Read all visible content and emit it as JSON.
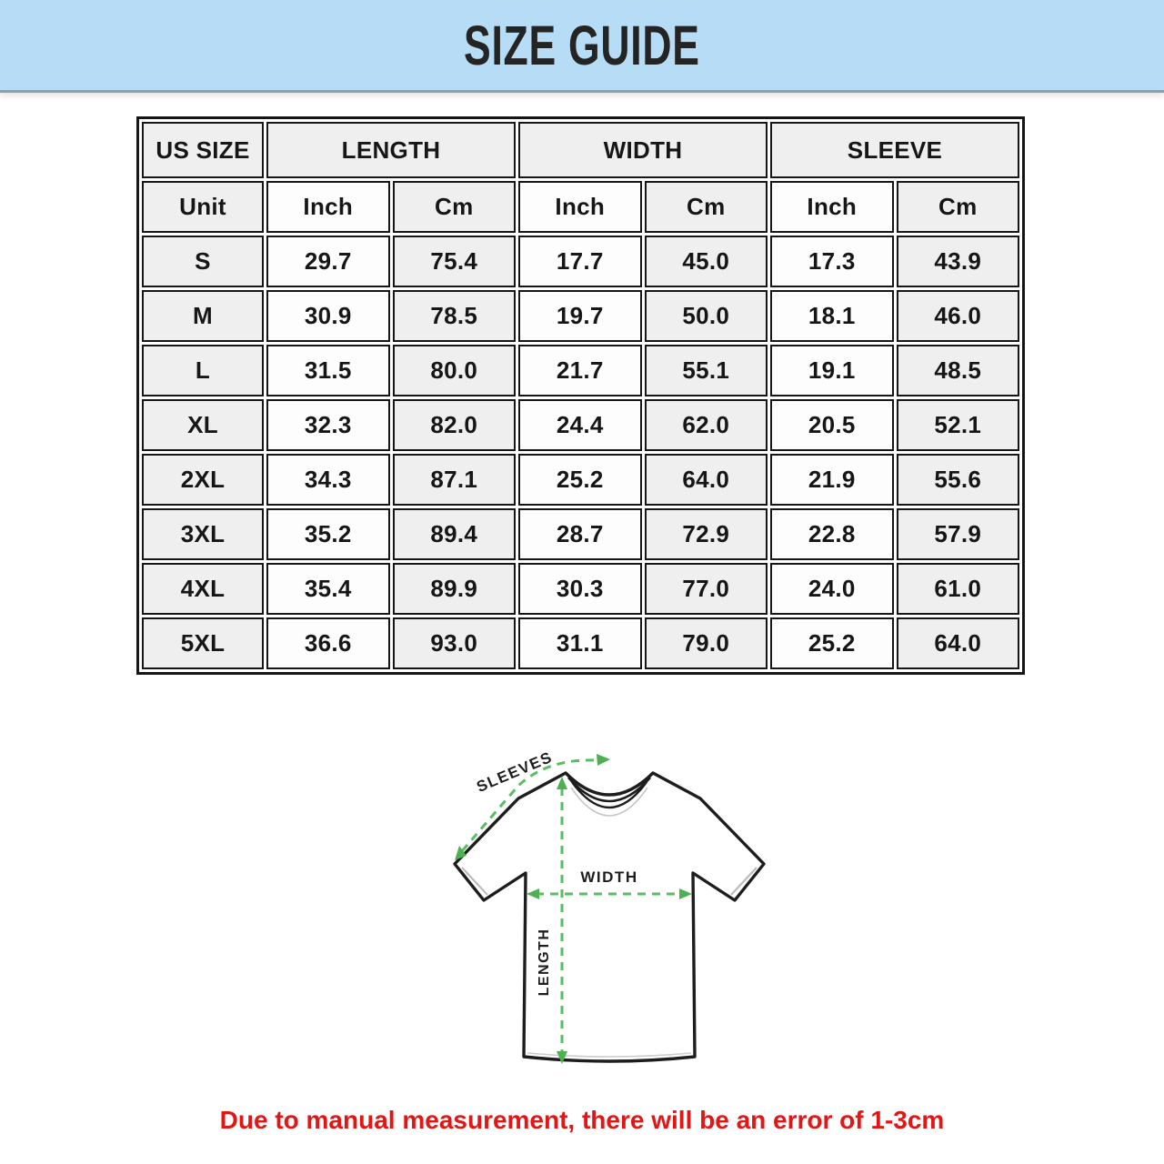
{
  "chart_data": {
    "type": "table",
    "title": "SIZE GUIDE",
    "column_groups": [
      {
        "label": "US SIZE"
      },
      {
        "label": "LENGTH"
      },
      {
        "label": "WIDTH"
      },
      {
        "label": "SLEEVE"
      }
    ],
    "sub_columns": [
      "Unit",
      "Inch",
      "Cm",
      "Inch",
      "Cm",
      "Inch",
      "Cm"
    ],
    "rows": [
      {
        "size": "S",
        "values": [
          "29.7",
          "75.4",
          "17.7",
          "45.0",
          "17.3",
          "43.9"
        ]
      },
      {
        "size": "M",
        "values": [
          "30.9",
          "78.5",
          "19.7",
          "50.0",
          "18.1",
          "46.0"
        ]
      },
      {
        "size": "L",
        "values": [
          "31.5",
          "80.0",
          "21.7",
          "55.1",
          "19.1",
          "48.5"
        ]
      },
      {
        "size": "XL",
        "values": [
          "32.3",
          "82.0",
          "24.4",
          "62.0",
          "20.5",
          "52.1"
        ]
      },
      {
        "size": "2XL",
        "values": [
          "34.3",
          "87.1",
          "25.2",
          "64.0",
          "21.9",
          "55.6"
        ]
      },
      {
        "size": "3XL",
        "values": [
          "35.2",
          "89.4",
          "28.7",
          "72.9",
          "22.8",
          "57.9"
        ]
      },
      {
        "size": "4XL",
        "values": [
          "35.4",
          "89.9",
          "30.3",
          "77.0",
          "24.0",
          "61.0"
        ]
      },
      {
        "size": "5XL",
        "values": [
          "36.6",
          "93.0",
          "31.1",
          "79.0",
          "25.2",
          "64.0"
        ]
      }
    ]
  },
  "diagram": {
    "sleeves_label": "SLEEVES",
    "width_label": "WIDTH",
    "length_label": "LENGTH"
  },
  "footer": {
    "note": "Due to manual measurement, there will be an error of 1-3cm"
  },
  "colors": {
    "banner_blue": "#b6dcf6",
    "arrow_green": "#5bbd63",
    "note_red": "#e31616",
    "cell_gray": "#efefef",
    "border_black": "#161616"
  }
}
